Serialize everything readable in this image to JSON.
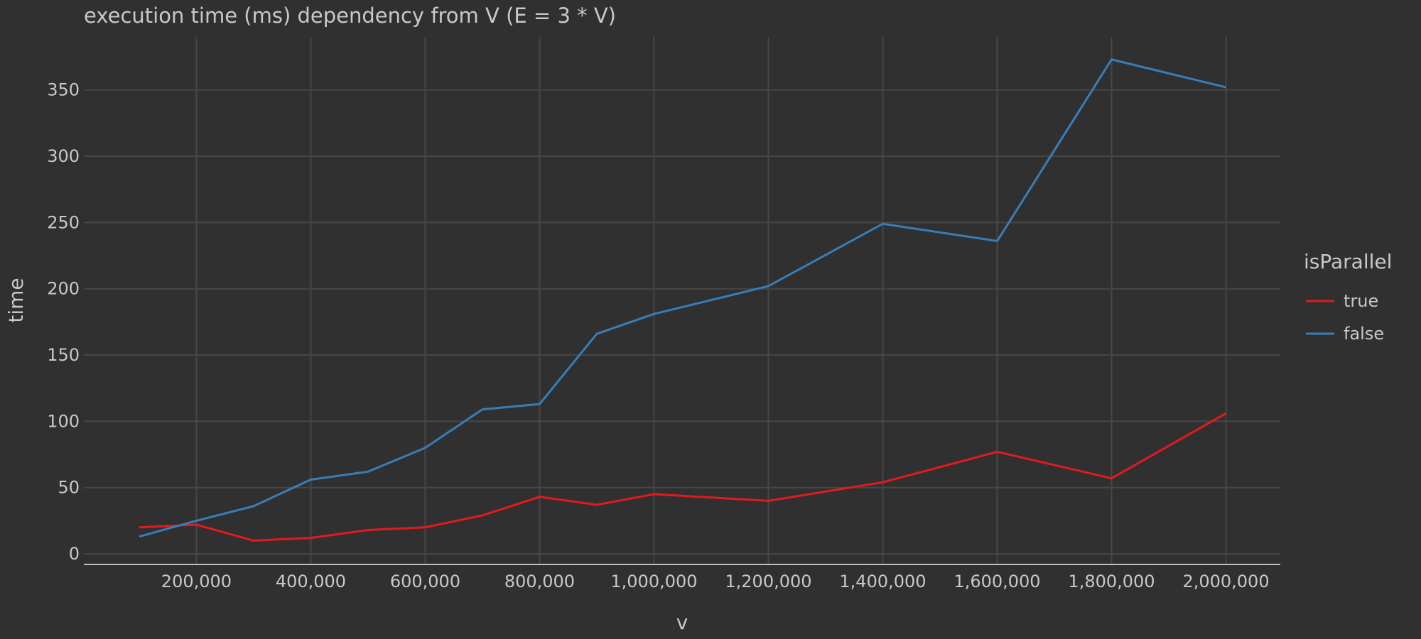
{
  "chart_data": {
    "type": "line",
    "title": "execution time (ms) dependency from V (E = 3 * V)",
    "xlabel": "v",
    "ylabel": "time",
    "x": [
      100000,
      200000,
      300000,
      400000,
      500000,
      600000,
      700000,
      800000,
      900000,
      1000000,
      1200000,
      1400000,
      1600000,
      1800000,
      2000000
    ],
    "series": [
      {
        "name": "true",
        "color": "#e41a1c",
        "values": [
          20,
          22,
          10,
          12,
          18,
          20,
          29,
          43,
          37,
          45,
          40,
          54,
          77,
          57,
          106
        ]
      },
      {
        "name": "false",
        "color": "#377eb8",
        "values": [
          13,
          25,
          36,
          56,
          62,
          80,
          109,
          113,
          166,
          181,
          202,
          249,
          236,
          373,
          352
        ]
      }
    ],
    "xticks": [
      200000,
      400000,
      600000,
      800000,
      1000000,
      1200000,
      1400000,
      1600000,
      1800000,
      2000000
    ],
    "xtick_labels": [
      "200,000",
      "400,000",
      "600,000",
      "800,000",
      "1,000,000",
      "1,200,000",
      "1,400,000",
      "1,600,000",
      "1,800,000",
      "2,000,000"
    ],
    "yticks": [
      0,
      50,
      100,
      150,
      200,
      250,
      300,
      350
    ],
    "ytick_labels": [
      "0",
      "50",
      "100",
      "150",
      "200",
      "250",
      "300",
      "350"
    ],
    "xlim": [
      3200,
      2095000
    ],
    "ylim": [
      -8,
      390
    ],
    "grid": true,
    "legend": {
      "title": "isParallel",
      "placement": "right"
    }
  }
}
